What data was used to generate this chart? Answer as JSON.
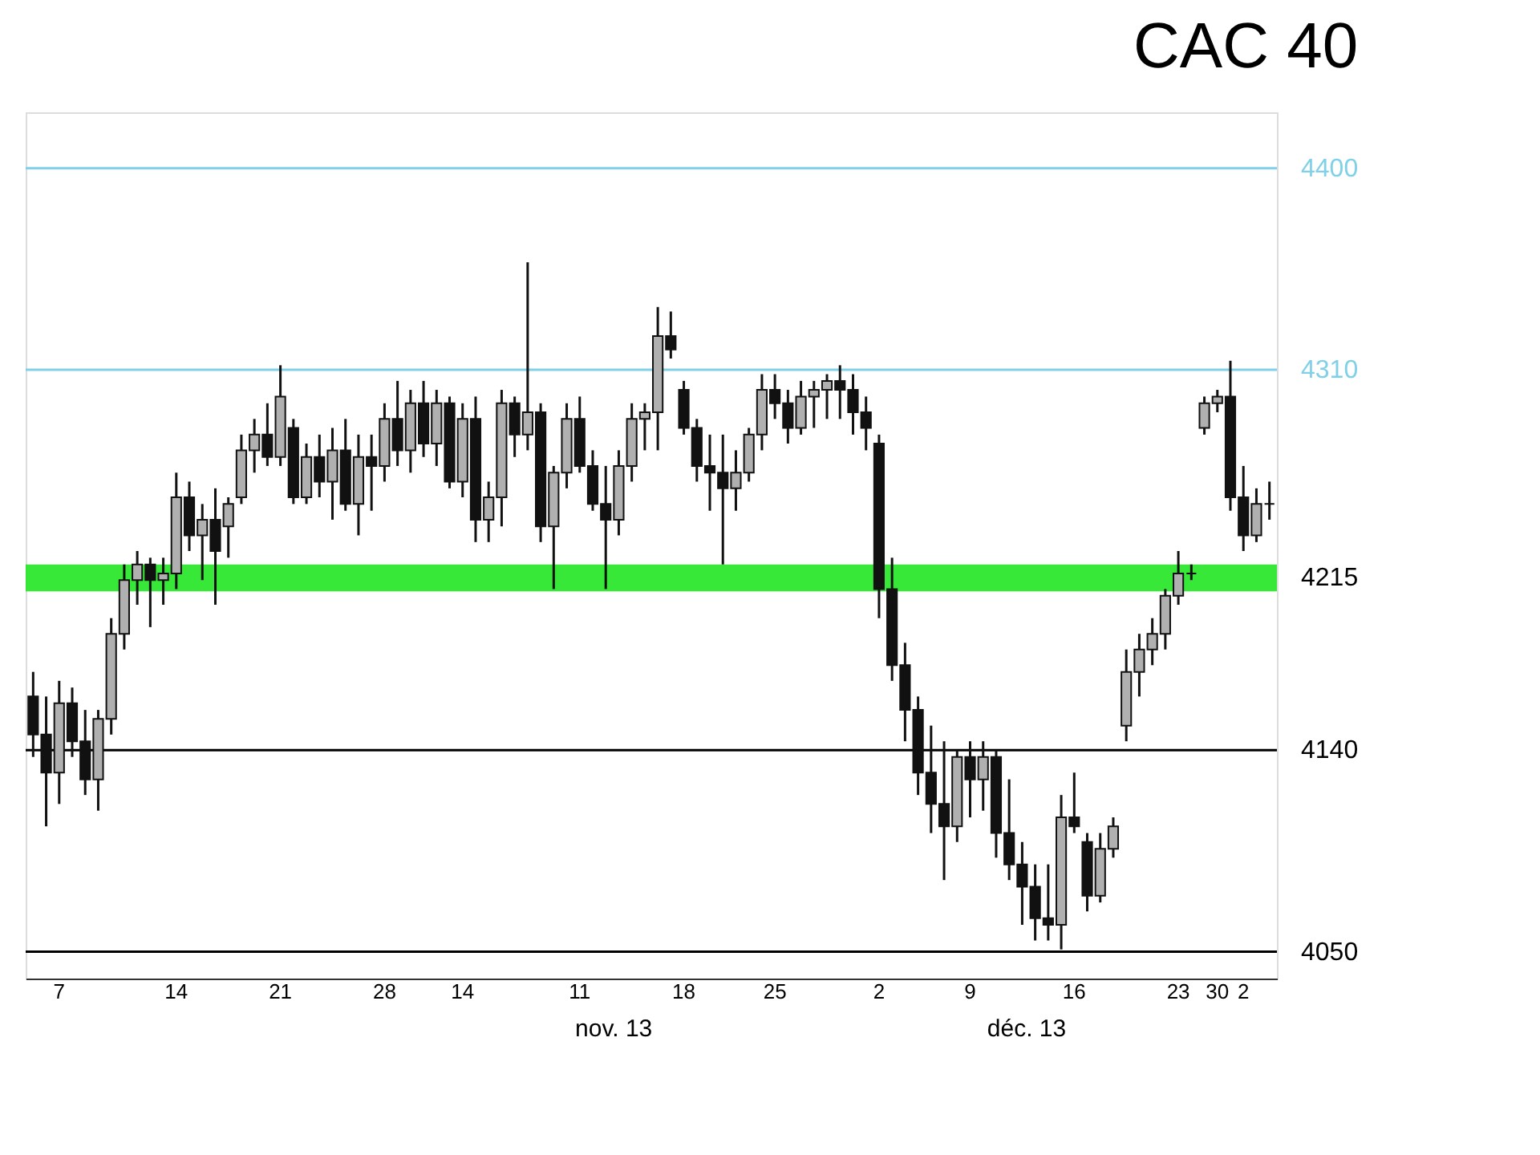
{
  "chart_data": {
    "type": "candlestick",
    "title": "CAC 40",
    "categories": [
      null,
      null,
      "7",
      null,
      null,
      null,
      null,
      null,
      null,
      null,
      null,
      "14",
      null,
      null,
      null,
      null,
      null,
      null,
      null,
      "21",
      null,
      null,
      null,
      null,
      null,
      null,
      null,
      "28",
      null,
      null,
      null,
      null,
      null,
      "14",
      null,
      null,
      null,
      null,
      null,
      null,
      null,
      null,
      "11",
      null,
      null,
      null,
      null,
      null,
      null,
      null,
      "18",
      null,
      null,
      null,
      null,
      null,
      null,
      "25",
      null,
      null,
      null,
      null,
      null,
      null,
      null,
      "2",
      null,
      null,
      null,
      null,
      null,
      null,
      "9",
      null,
      null,
      null,
      null,
      null,
      null,
      null,
      "16",
      null,
      null,
      null,
      null,
      null,
      null,
      null,
      "23",
      null,
      null,
      "30",
      null,
      "2",
      null,
      null
    ],
    "ohlc": [
      [
        4164,
        4175,
        4137,
        4147
      ],
      [
        4147,
        4164,
        4106,
        4130
      ],
      [
        4130,
        4171,
        4116,
        4161
      ],
      [
        4161,
        4168,
        4137,
        4144
      ],
      [
        4144,
        4158,
        4120,
        4127
      ],
      [
        4127,
        4158,
        4113,
        4154
      ],
      [
        4154,
        4199,
        4147,
        4192
      ],
      [
        4192,
        4223,
        4185,
        4216
      ],
      [
        4216,
        4229,
        4205,
        4223
      ],
      [
        4223,
        4226,
        4195,
        4216
      ],
      [
        4216,
        4226,
        4205,
        4219
      ],
      [
        4219,
        4264,
        4212,
        4253
      ],
      [
        4253,
        4260,
        4229,
        4236
      ],
      [
        4236,
        4250,
        4216,
        4243
      ],
      [
        4243,
        4257,
        4205,
        4229
      ],
      [
        4240,
        4253,
        4226,
        4250
      ],
      [
        4253,
        4281,
        4250,
        4274
      ],
      [
        4274,
        4288,
        4264,
        4281
      ],
      [
        4281,
        4295,
        4267,
        4271
      ],
      [
        4271,
        4312,
        4267,
        4298
      ],
      [
        4284,
        4288,
        4250,
        4253
      ],
      [
        4253,
        4277,
        4250,
        4271
      ],
      [
        4271,
        4281,
        4253,
        4260
      ],
      [
        4260,
        4284,
        4243,
        4274
      ],
      [
        4274,
        4288,
        4247,
        4250
      ],
      [
        4250,
        4281,
        4236,
        4271
      ],
      [
        4271,
        4281,
        4247,
        4267
      ],
      [
        4267,
        4295,
        4260,
        4288
      ],
      [
        4288,
        4305,
        4267,
        4274
      ],
      [
        4274,
        4301,
        4264,
        4295
      ],
      [
        4295,
        4305,
        4271,
        4277
      ],
      [
        4277,
        4301,
        4267,
        4295
      ],
      [
        4295,
        4298,
        4257,
        4260
      ],
      [
        4260,
        4295,
        4253,
        4288
      ],
      [
        4288,
        4298,
        4233,
        4243
      ],
      [
        4243,
        4260,
        4233,
        4253
      ],
      [
        4253,
        4301,
        4240,
        4295
      ],
      [
        4295,
        4298,
        4271,
        4281
      ],
      [
        4281,
        4358,
        4274,
        4291
      ],
      [
        4291,
        4295,
        4233,
        4240
      ],
      [
        4240,
        4267,
        4212,
        4264
      ],
      [
        4264,
        4295,
        4257,
        4288
      ],
      [
        4288,
        4298,
        4264,
        4267
      ],
      [
        4267,
        4274,
        4247,
        4250
      ],
      [
        4250,
        4267,
        4212,
        4243
      ],
      [
        4243,
        4274,
        4236,
        4267
      ],
      [
        4267,
        4295,
        4260,
        4288
      ],
      [
        4288,
        4295,
        4274,
        4291
      ],
      [
        4291,
        4338,
        4274,
        4325
      ],
      [
        4325,
        4336,
        4315,
        4319
      ],
      [
        4301,
        4305,
        4281,
        4284
      ],
      [
        4284,
        4288,
        4260,
        4267
      ],
      [
        4267,
        4281,
        4247,
        4264
      ],
      [
        4264,
        4281,
        4223,
        4257
      ],
      [
        4257,
        4274,
        4247,
        4264
      ],
      [
        4264,
        4284,
        4260,
        4281
      ],
      [
        4281,
        4308,
        4274,
        4301
      ],
      [
        4301,
        4308,
        4288,
        4295
      ],
      [
        4295,
        4301,
        4277,
        4284
      ],
      [
        4284,
        4305,
        4281,
        4298
      ],
      [
        4298,
        4305,
        4284,
        4301
      ],
      [
        4301,
        4308,
        4288,
        4305
      ],
      [
        4305,
        4312,
        4288,
        4301
      ],
      [
        4301,
        4308,
        4281,
        4291
      ],
      [
        4291,
        4298,
        4274,
        4284
      ],
      [
        4277,
        4281,
        4199,
        4212
      ],
      [
        4212,
        4226,
        4171,
        4178
      ],
      [
        4178,
        4188,
        4144,
        4158
      ],
      [
        4158,
        4164,
        4120,
        4130
      ],
      [
        4130,
        4151,
        4103,
        4116
      ],
      [
        4116,
        4144,
        4082,
        4106
      ],
      [
        4106,
        4140,
        4099,
        4137
      ],
      [
        4137,
        4144,
        4110,
        4127
      ],
      [
        4127,
        4144,
        4113,
        4137
      ],
      [
        4137,
        4140,
        4092,
        4103
      ],
      [
        4103,
        4127,
        4082,
        4089
      ],
      [
        4089,
        4099,
        4062,
        4079
      ],
      [
        4079,
        4089,
        4055,
        4065
      ],
      [
        4065,
        4089,
        4055,
        4062
      ],
      [
        4062,
        4120,
        4051,
        4110
      ],
      [
        4110,
        4130,
        4103,
        4106
      ],
      [
        4099,
        4103,
        4068,
        4075
      ],
      [
        4075,
        4103,
        4072,
        4096
      ],
      [
        4096,
        4110,
        4092,
        4106
      ],
      [
        4151,
        4185,
        4144,
        4175
      ],
      [
        4175,
        4192,
        4164,
        4185
      ],
      [
        4185,
        4199,
        4178,
        4192
      ],
      [
        4192,
        4212,
        4185,
        4209
      ],
      [
        4209,
        4229,
        4205,
        4219
      ],
      [
        4219,
        4223,
        4216,
        4219
      ],
      [
        4284,
        4298,
        4281,
        4295
      ],
      [
        4295,
        4301,
        4291,
        4298
      ],
      [
        4298,
        4314,
        4247,
        4253
      ],
      [
        4253,
        4267,
        4229,
        4236
      ],
      [
        4236,
        4257,
        4233,
        4250
      ],
      [
        4250,
        4260,
        4243,
        4250
      ]
    ],
    "ylim": [
      4038,
      4425
    ],
    "ref_lines": [
      {
        "axis": "y",
        "value": 4400,
        "label": "4400",
        "color": "#7fd0e8"
      },
      {
        "axis": "y",
        "value": 4310,
        "label": "4310",
        "color": "#7fd0e8"
      },
      {
        "axis": "y",
        "value": 4140,
        "label": "4140",
        "color": "#000000"
      },
      {
        "axis": "y",
        "value": 4050,
        "label": "4050",
        "color": "#000000"
      }
    ],
    "bands": [
      {
        "axis": "y",
        "from": 4211,
        "to": 4223,
        "label": "4215",
        "color": "#22e622"
      }
    ],
    "annotations": [
      "nov. 13",
      "déc. 13"
    ],
    "tick_labels": "x"
  }
}
